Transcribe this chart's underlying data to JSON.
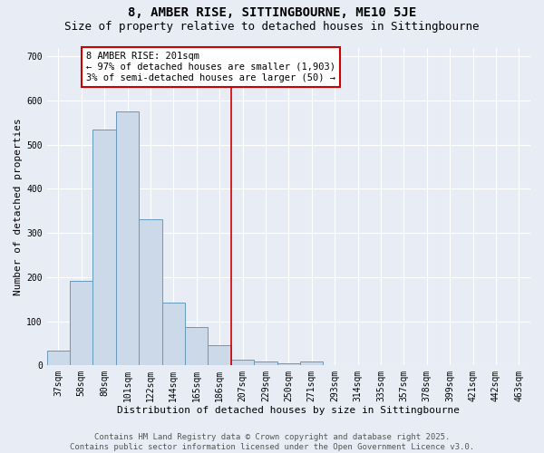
{
  "title": "8, AMBER RISE, SITTINGBOURNE, ME10 5JE",
  "subtitle": "Size of property relative to detached houses in Sittingbourne",
  "xlabel": "Distribution of detached houses by size in Sittingbourne",
  "ylabel": "Number of detached properties",
  "categories": [
    "37sqm",
    "58sqm",
    "80sqm",
    "101sqm",
    "122sqm",
    "144sqm",
    "165sqm",
    "186sqm",
    "207sqm",
    "229sqm",
    "250sqm",
    "271sqm",
    "293sqm",
    "314sqm",
    "335sqm",
    "357sqm",
    "378sqm",
    "399sqm",
    "421sqm",
    "442sqm",
    "463sqm"
  ],
  "values": [
    33,
    192,
    535,
    575,
    332,
    143,
    87,
    45,
    13,
    8,
    4,
    8,
    0,
    0,
    1,
    0,
    0,
    0,
    0,
    0,
    0
  ],
  "bar_color": "#ccd9e8",
  "bar_edge_color": "#6699bb",
  "vline_color": "#cc0000",
  "annotation_text": "8 AMBER RISE: 201sqm\n← 97% of detached houses are smaller (1,903)\n3% of semi-detached houses are larger (50) →",
  "annotation_box_color": "white",
  "annotation_box_edge_color": "#cc0000",
  "ylim": [
    0,
    720
  ],
  "yticks": [
    0,
    100,
    200,
    300,
    400,
    500,
    600,
    700
  ],
  "background_color": "#e8edf5",
  "grid_color": "white",
  "footer": "Contains HM Land Registry data © Crown copyright and database right 2025.\nContains public sector information licensed under the Open Government Licence v3.0.",
  "title_fontsize": 10,
  "subtitle_fontsize": 9,
  "xlabel_fontsize": 8,
  "ylabel_fontsize": 8,
  "tick_fontsize": 7,
  "annotation_fontsize": 7.5,
  "footer_fontsize": 6.5
}
